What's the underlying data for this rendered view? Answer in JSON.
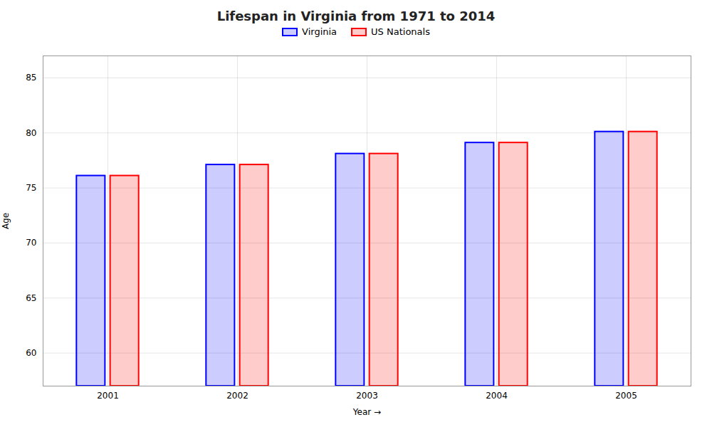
{
  "chart_data": {
    "type": "bar",
    "title": "Lifespan in Virginia from 1971 to 2014",
    "xlabel": "Year",
    "ylabel": "Age",
    "categories": [
      "2001",
      "2002",
      "2003",
      "2004",
      "2005"
    ],
    "series": [
      {
        "name": "Virginia",
        "color": "#0000ff",
        "values": [
          76.1,
          77.1,
          78.1,
          79.1,
          80.1
        ]
      },
      {
        "name": "US Nationals",
        "color": "#ff0000",
        "values": [
          76.1,
          77.1,
          78.1,
          79.1,
          80.1
        ]
      }
    ],
    "ylim": [
      57,
      87
    ],
    "yticks": [
      60,
      65,
      70,
      75,
      80,
      85
    ],
    "grid": true,
    "legend": "top"
  }
}
